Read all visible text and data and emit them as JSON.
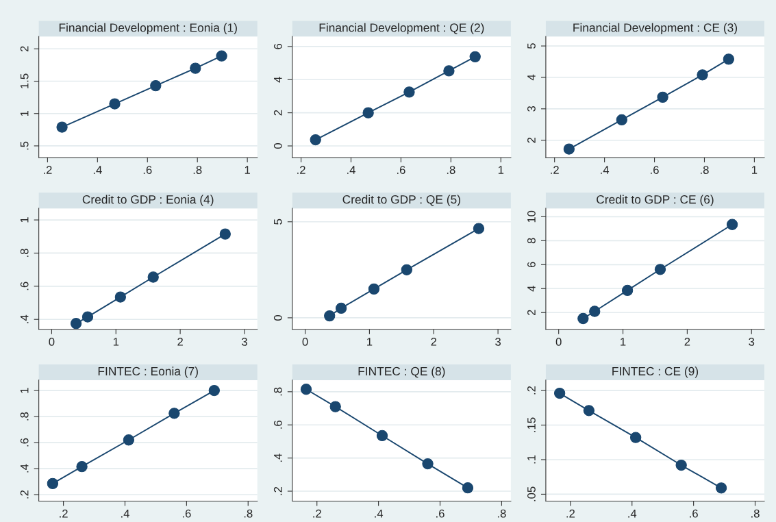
{
  "chart_data": [
    {
      "type": "line",
      "title": "Financial Development : Eonia (1)",
      "x": [
        0.258,
        0.469,
        0.633,
        0.792,
        0.897
      ],
      "series": [
        {
          "color": "#1a476f",
          "values": [
            0.79,
            1.15,
            1.43,
            1.7,
            1.89
          ]
        }
      ],
      "xlim": [
        0.165,
        1.04
      ],
      "xticks": [
        {
          "value": 0.2,
          "label": ".2"
        },
        {
          "value": 0.4,
          "label": ".4"
        },
        {
          "value": 0.6,
          "label": ".6"
        },
        {
          "value": 0.8,
          "label": ".8"
        },
        1
      ],
      "ylim": [
        0.32,
        2.19
      ],
      "yticks": [
        {
          "value": 0.5,
          "label": ".5"
        },
        1,
        1.5,
        2
      ],
      "grid": "y",
      "marker": "circle",
      "line_style": "solid"
    },
    {
      "type": "line",
      "title": "Financial Development : QE (2)",
      "x": [
        0.258,
        0.469,
        0.633,
        0.792,
        0.897
      ],
      "series": [
        {
          "color": "#1a476f",
          "values": [
            0.37,
            2.0,
            3.25,
            4.53,
            5.38
          ]
        }
      ],
      "xlim": [
        0.165,
        1.04
      ],
      "xticks": [
        {
          "value": 0.2,
          "label": ".2"
        },
        {
          "value": 0.4,
          "label": ".4"
        },
        {
          "value": 0.6,
          "label": ".6"
        },
        {
          "value": 0.8,
          "label": ".8"
        },
        1
      ],
      "ylim": [
        -0.7,
        6.6
      ],
      "yticks": [
        0,
        2,
        4,
        6
      ],
      "grid": "y",
      "marker": "circle",
      "line_style": "solid"
    },
    {
      "type": "line",
      "title": "Financial Development : CE (3)",
      "x": [
        0.258,
        0.469,
        0.633,
        0.792,
        0.897
      ],
      "series": [
        {
          "color": "#1a476f",
          "values": [
            1.72,
            2.65,
            3.37,
            4.08,
            4.58
          ]
        }
      ],
      "xlim": [
        0.165,
        1.04
      ],
      "xticks": [
        {
          "value": 0.2,
          "label": ".2"
        },
        {
          "value": 0.4,
          "label": ".4"
        },
        {
          "value": 0.6,
          "label": ".6"
        },
        {
          "value": 0.8,
          "label": ".8"
        },
        1
      ],
      "ylim": [
        1.45,
        5.3
      ],
      "yticks": [
        2,
        3,
        4,
        5
      ],
      "grid": "y",
      "marker": "circle",
      "line_style": "solid"
    },
    {
      "type": "line",
      "title": "Credit to GDP : Eonia (4)",
      "x": [
        0.38,
        0.56,
        1.07,
        1.58,
        2.7
      ],
      "series": [
        {
          "color": "#1a476f",
          "values": [
            0.375,
            0.415,
            0.535,
            0.655,
            0.915
          ]
        }
      ],
      "xlim": [
        -0.2,
        3.2
      ],
      "xticks": [
        0,
        1,
        2,
        3
      ],
      "ylim": [
        0.34,
        1.07
      ],
      "yticks": [
        {
          "value": 0.4,
          "label": ".4"
        },
        {
          "value": 0.6,
          "label": ".6"
        },
        {
          "value": 0.8,
          "label": ".8"
        },
        1
      ],
      "grid": "y",
      "marker": "circle",
      "line_style": "solid"
    },
    {
      "type": "line",
      "title": "Credit to GDP : QE (5)",
      "x": [
        0.38,
        0.56,
        1.07,
        1.58,
        2.7
      ],
      "series": [
        {
          "color": "#1a476f",
          "values": [
            0.1,
            0.5,
            1.5,
            2.5,
            4.65
          ]
        }
      ],
      "xlim": [
        -0.2,
        3.2
      ],
      "xticks": [
        0,
        1,
        2,
        3
      ],
      "ylim": [
        -0.6,
        5.7
      ],
      "yticks": [
        0,
        5
      ],
      "grid": "y",
      "marker": "circle",
      "line_style": "solid"
    },
    {
      "type": "line",
      "title": "Credit to GDP : CE (6)",
      "x": [
        0.38,
        0.56,
        1.07,
        1.58,
        2.7
      ],
      "series": [
        {
          "color": "#1a476f",
          "values": [
            1.5,
            2.1,
            3.85,
            5.6,
            9.35
          ]
        }
      ],
      "xlim": [
        -0.2,
        3.2
      ],
      "xticks": [
        0,
        1,
        2,
        3
      ],
      "ylim": [
        0.6,
        10.7
      ],
      "yticks": [
        2,
        4,
        6,
        8,
        10
      ],
      "grid": "y",
      "marker": "circle",
      "line_style": "solid"
    },
    {
      "type": "line",
      "title": "FINTEC : Eonia (7)",
      "x": [
        0.165,
        0.26,
        0.412,
        0.56,
        0.69
      ],
      "series": [
        {
          "color": "#1a476f",
          "values": [
            0.285,
            0.415,
            0.62,
            0.825,
            1.0
          ]
        }
      ],
      "xlim": [
        0.12,
        0.83
      ],
      "xticks": [
        {
          "value": 0.2,
          "label": ".2"
        },
        {
          "value": 0.4,
          "label": ".4"
        },
        {
          "value": 0.6,
          "label": ".6"
        },
        {
          "value": 0.8,
          "label": ".8"
        }
      ],
      "ylim": [
        0.15,
        1.08
      ],
      "yticks": [
        {
          "value": 0.2,
          "label": ".2"
        },
        {
          "value": 0.4,
          "label": ".4"
        },
        {
          "value": 0.6,
          "label": ".6"
        },
        {
          "value": 0.8,
          "label": ".8"
        },
        1
      ],
      "grid": "y",
      "marker": "circle",
      "line_style": "solid"
    },
    {
      "type": "line",
      "title": "FINTEC : QE (8)",
      "x": [
        0.165,
        0.26,
        0.412,
        0.56,
        0.69
      ],
      "series": [
        {
          "color": "#1a476f",
          "values": [
            0.815,
            0.71,
            0.535,
            0.365,
            0.22
          ]
        }
      ],
      "xlim": [
        0.12,
        0.83
      ],
      "xticks": [
        {
          "value": 0.2,
          "label": ".2"
        },
        {
          "value": 0.4,
          "label": ".4"
        },
        {
          "value": 0.6,
          "label": ".6"
        },
        {
          "value": 0.8,
          "label": ".8"
        }
      ],
      "ylim": [
        0.14,
        0.87
      ],
      "yticks": [
        {
          "value": 0.2,
          "label": ".2"
        },
        {
          "value": 0.4,
          "label": ".4"
        },
        {
          "value": 0.6,
          "label": ".6"
        },
        {
          "value": 0.8,
          "label": ".8"
        }
      ],
      "grid": "y",
      "marker": "circle",
      "line_style": "solid"
    },
    {
      "type": "line",
      "title": "FINTEC : CE (9)",
      "x": [
        0.165,
        0.26,
        0.412,
        0.56,
        0.69
      ],
      "series": [
        {
          "color": "#1a476f",
          "values": [
            0.196,
            0.171,
            0.132,
            0.092,
            0.059
          ]
        }
      ],
      "xlim": [
        0.12,
        0.83
      ],
      "xticks": [
        {
          "value": 0.2,
          "label": ".2"
        },
        {
          "value": 0.4,
          "label": ".4"
        },
        {
          "value": 0.6,
          "label": ".6"
        },
        {
          "value": 0.8,
          "label": ".8"
        }
      ],
      "ylim": [
        0.04,
        0.215
      ],
      "yticks": [
        {
          "value": 0.05,
          "label": ".05"
        },
        {
          "value": 0.1,
          "label": ".1"
        },
        {
          "value": 0.15,
          "label": ".15"
        },
        {
          "value": 0.2,
          "label": ".2"
        }
      ],
      "grid": "y",
      "marker": "circle",
      "line_style": "solid"
    }
  ]
}
